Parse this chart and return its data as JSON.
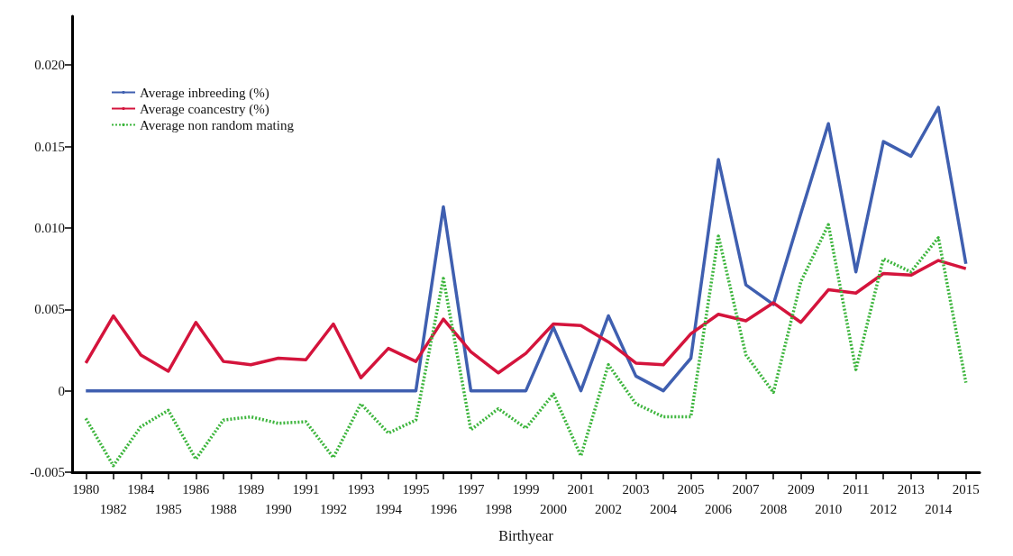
{
  "chart_data": {
    "type": "line",
    "xlabel": "Birthyear",
    "categories": [
      "1980",
      "1982",
      "1984",
      "1985",
      "1986",
      "1988",
      "1989",
      "1990",
      "1991",
      "1992",
      "1993",
      "1994",
      "1995",
      "1996",
      "1997",
      "1998",
      "1999",
      "2000",
      "2001",
      "2002",
      "2003",
      "2004",
      "2005",
      "2006",
      "2007",
      "2008",
      "2009",
      "2010",
      "2011",
      "2012",
      "2013",
      "2014",
      "2015"
    ],
    "series": [
      {
        "name": "Average inbreeding (%)",
        "color": "#3f5fb0",
        "line_style": "solid",
        "values": [
          0,
          0,
          0,
          0,
          0,
          0,
          0,
          0,
          0,
          0,
          0,
          0,
          0,
          0.0113,
          0,
          0,
          0,
          0.0039,
          0,
          0.0046,
          0.0009,
          0,
          0.002,
          0.0142,
          0.0065,
          0.0053,
          0.0109,
          0.0164,
          0.0073,
          0.0153,
          0.0144,
          0.0174,
          0.0078
        ]
      },
      {
        "name": "Average coancestry (%)",
        "color": "#d4143c",
        "line_style": "solid",
        "values": [
          0.0017,
          0.0046,
          0.0022,
          0.0012,
          0.0042,
          0.0018,
          0.0016,
          0.002,
          0.0019,
          0.0041,
          0.0008,
          0.0026,
          0.0018,
          0.0044,
          0.0024,
          0.0011,
          0.0023,
          0.0041,
          0.004,
          0.003,
          0.0017,
          0.0016,
          0.0035,
          0.0047,
          0.0043,
          0.0054,
          0.0042,
          0.0062,
          0.006,
          0.0072,
          0.0071,
          0.008,
          0.0075
        ]
      },
      {
        "name": "Average non random mating",
        "color": "#3db53d",
        "line_style": "dotted",
        "values": [
          -0.0017,
          -0.0046,
          -0.0022,
          -0.0012,
          -0.0042,
          -0.0018,
          -0.0016,
          -0.002,
          -0.0019,
          -0.0041,
          -0.0008,
          -0.0026,
          -0.0018,
          0.0069,
          -0.0024,
          -0.0011,
          -0.0023,
          -0.0002,
          -0.004,
          0.0016,
          -0.0008,
          -0.0016,
          -0.0016,
          0.0095,
          0.0022,
          -0.0001,
          0.0067,
          0.0102,
          0.0013,
          0.0081,
          0.0073,
          0.0094,
          0.0005
        ]
      }
    ],
    "ylim": [
      -0.005,
      0.023
    ],
    "yticks": [
      {
        "value": -0.005,
        "label": "-0.005"
      },
      0,
      {
        "value": 0.005,
        "label": "0.005"
      },
      {
        "value": 0.01,
        "label": "0.010"
      },
      {
        "value": 0.015,
        "label": "0.015"
      },
      {
        "value": 0.02,
        "label": "0.020"
      }
    ],
    "legend": "top left",
    "grid": false,
    "marker": "none"
  }
}
